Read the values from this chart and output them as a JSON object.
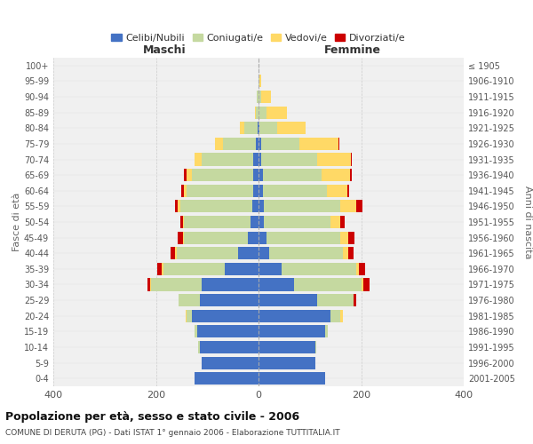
{
  "age_groups": [
    "0-4",
    "5-9",
    "10-14",
    "15-19",
    "20-24",
    "25-29",
    "30-34",
    "35-39",
    "40-44",
    "45-49",
    "50-54",
    "55-59",
    "60-64",
    "65-69",
    "70-74",
    "75-79",
    "80-84",
    "85-89",
    "90-94",
    "95-99",
    "100+"
  ],
  "birth_years": [
    "2001-2005",
    "1996-2000",
    "1991-1995",
    "1986-1990",
    "1981-1985",
    "1976-1980",
    "1971-1975",
    "1966-1970",
    "1961-1965",
    "1956-1960",
    "1951-1955",
    "1946-1950",
    "1941-1945",
    "1936-1940",
    "1931-1935",
    "1926-1930",
    "1921-1925",
    "1916-1920",
    "1911-1915",
    "1906-1910",
    "≤ 1905"
  ],
  "males": {
    "celibi": [
      125,
      110,
      115,
      120,
      130,
      115,
      110,
      65,
      40,
      20,
      15,
      12,
      10,
      10,
      10,
      5,
      2,
      0,
      0,
      0,
      0
    ],
    "coniugati": [
      0,
      0,
      3,
      5,
      10,
      40,
      100,
      120,
      120,
      125,
      130,
      140,
      130,
      120,
      100,
      65,
      25,
      5,
      3,
      0,
      0
    ],
    "vedovi": [
      0,
      0,
      0,
      0,
      2,
      0,
      2,
      3,
      3,
      3,
      3,
      5,
      5,
      10,
      15,
      15,
      10,
      2,
      1,
      0,
      0
    ],
    "divorziati": [
      0,
      0,
      0,
      0,
      0,
      0,
      5,
      10,
      8,
      10,
      5,
      5,
      5,
      5,
      0,
      0,
      0,
      0,
      0,
      0,
      0
    ]
  },
  "females": {
    "nubili": [
      130,
      110,
      110,
      130,
      140,
      115,
      70,
      45,
      20,
      15,
      10,
      10,
      8,
      8,
      5,
      5,
      2,
      0,
      0,
      0,
      0
    ],
    "coniugate": [
      0,
      0,
      3,
      5,
      20,
      70,
      130,
      145,
      145,
      145,
      130,
      150,
      125,
      115,
      110,
      75,
      35,
      15,
      5,
      2,
      0
    ],
    "vedove": [
      0,
      0,
      0,
      0,
      5,
      0,
      5,
      5,
      10,
      15,
      20,
      30,
      40,
      55,
      65,
      75,
      55,
      40,
      20,
      3,
      0
    ],
    "divorziate": [
      0,
      0,
      0,
      0,
      0,
      5,
      12,
      12,
      10,
      12,
      8,
      12,
      3,
      3,
      2,
      2,
      0,
      0,
      0,
      0,
      0
    ]
  },
  "colors": {
    "celibi_nubili": "#4472c4",
    "coniugati_e": "#c5d9a0",
    "vedovi_e": "#ffd966",
    "divorziati_e": "#cc0000"
  },
  "xlim": 400,
  "title": "Popolazione per età, sesso e stato civile - 2006",
  "subtitle": "COMUNE DI DERUTA (PG) - Dati ISTAT 1° gennaio 2006 - Elaborazione TUTTITALIA.IT",
  "ylabel_left": "Fasce di età",
  "ylabel_right": "Anni di nascita",
  "xlabel_left": "Maschi",
  "xlabel_right": "Femmine",
  "bg_color": "#ffffff",
  "plot_bg": "#f0f0f0"
}
